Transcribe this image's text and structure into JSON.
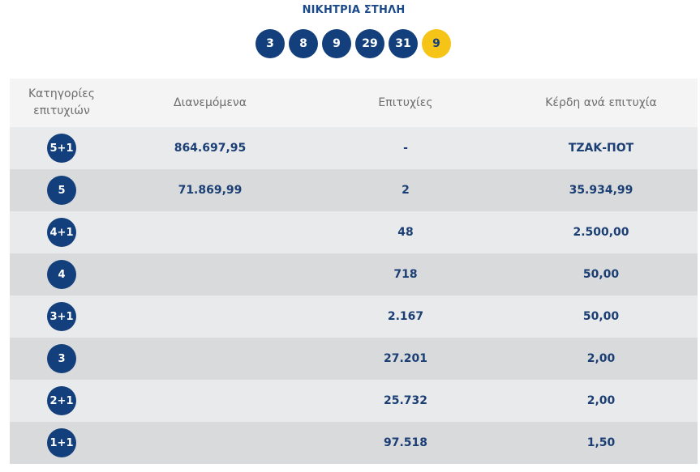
{
  "winning_line": {
    "title": "ΝΙΚΗΤΡΙΑ ΣΤΗΛΗ",
    "numbers": [
      "3",
      "8",
      "9",
      "29",
      "31"
    ],
    "joker": "9"
  },
  "table": {
    "headers": {
      "category_line1": "Κατηγορίες",
      "category_line2": "επιτυχιών",
      "distributed": "Διανεμόμενα",
      "winners": "Επιτυχίες",
      "prize": "Κέρδη ανά επιτυχία"
    },
    "rows": [
      {
        "category": "5+1",
        "distributed": "864.697,95",
        "winners": "-",
        "prize": "ΤΖΑΚ-ΠΟΤ"
      },
      {
        "category": "5",
        "distributed": "71.869,99",
        "winners": "2",
        "prize": "35.934,99"
      },
      {
        "category": "4+1",
        "distributed": "",
        "winners": "48",
        "prize": "2.500,00"
      },
      {
        "category": "4",
        "distributed": "",
        "winners": "718",
        "prize": "50,00"
      },
      {
        "category": "3+1",
        "distributed": "",
        "winners": "2.167",
        "prize": "50,00"
      },
      {
        "category": "3",
        "distributed": "",
        "winners": "27.201",
        "prize": "2,00"
      },
      {
        "category": "2+1",
        "distributed": "",
        "winners": "25.732",
        "prize": "2,00"
      },
      {
        "category": "1+1",
        "distributed": "",
        "winners": "97.518",
        "prize": "1,50"
      }
    ]
  },
  "colors": {
    "ball": "#133f7c",
    "joker_ball": "#f6c416",
    "title": "#1b4a8a",
    "row_light": "#e9eaec",
    "row_dark": "#d9dadc",
    "header_bg": "#f4f4f4"
  }
}
